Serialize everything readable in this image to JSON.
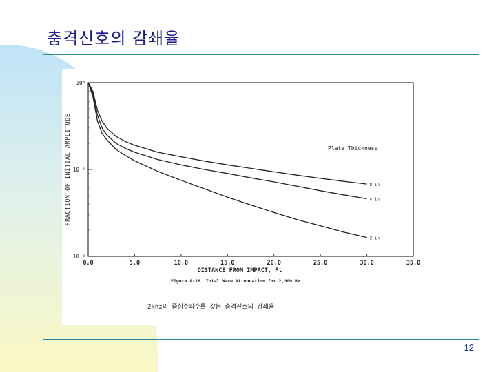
{
  "slide": {
    "title": "충격신호의 감쇄율",
    "page_number": "12"
  },
  "colors": {
    "title": "#1a1a8c",
    "rule": "#2f8f8a",
    "wash_blue": "#bfe3f7",
    "wash_yellow": "#fbf8c4"
  },
  "chart_data": {
    "type": "line",
    "scale_y": "log",
    "ylim": [
      0.01,
      1
    ],
    "xlim": [
      0,
      35
    ],
    "x_ticks": [
      "0.0",
      "5.0",
      "10.0",
      "15.0",
      "20.0",
      "25.0",
      "30.0",
      "35.0"
    ],
    "y_ticks": [
      "10⁰",
      "10⁻¹",
      "10⁻²"
    ],
    "xlabel": "DISTANCE FROM IMPACT, Ft",
    "ylabel": "FRACTION OF INITIAL AMPLITUDE",
    "legend_title": "Plate Thickness",
    "figure_caption": "Figure A-16.  Total Wave Attenuation for 2,000 Hz",
    "korean_caption": "2khz의 중심주파수를 갖는 충격신호의 감쇄율",
    "grid": false,
    "series": [
      {
        "name": "8 in",
        "x": [
          0,
          0.5,
          1,
          1.5,
          2,
          3,
          4,
          5,
          7.5,
          10,
          12.5,
          15,
          17.5,
          20,
          22.5,
          25,
          27.5,
          30
        ],
        "y": [
          1.0,
          0.8,
          0.48,
          0.36,
          0.3,
          0.24,
          0.21,
          0.19,
          0.158,
          0.14,
          0.125,
          0.113,
          0.103,
          0.094,
          0.086,
          0.079,
          0.073,
          0.068
        ]
      },
      {
        "name": "4 in",
        "x": [
          0,
          0.5,
          1,
          1.5,
          2,
          3,
          4,
          5,
          7.5,
          10,
          12.5,
          15,
          17.5,
          20,
          22.5,
          25,
          27.5,
          30
        ],
        "y": [
          1.0,
          0.75,
          0.42,
          0.3,
          0.25,
          0.2,
          0.175,
          0.158,
          0.13,
          0.113,
          0.1,
          0.09,
          0.08,
          0.072,
          0.064,
          0.057,
          0.051,
          0.046
        ]
      },
      {
        "name": "2 in",
        "x": [
          0,
          0.5,
          1,
          1.5,
          2,
          3,
          4,
          5,
          7.5,
          10,
          12.5,
          15,
          17.5,
          20,
          22.5,
          25,
          27.5,
          30
        ],
        "y": [
          1.0,
          0.7,
          0.36,
          0.26,
          0.22,
          0.17,
          0.145,
          0.126,
          0.095,
          0.075,
          0.06,
          0.048,
          0.039,
          0.032,
          0.0265,
          0.0225,
          0.019,
          0.0165
        ]
      }
    ]
  }
}
